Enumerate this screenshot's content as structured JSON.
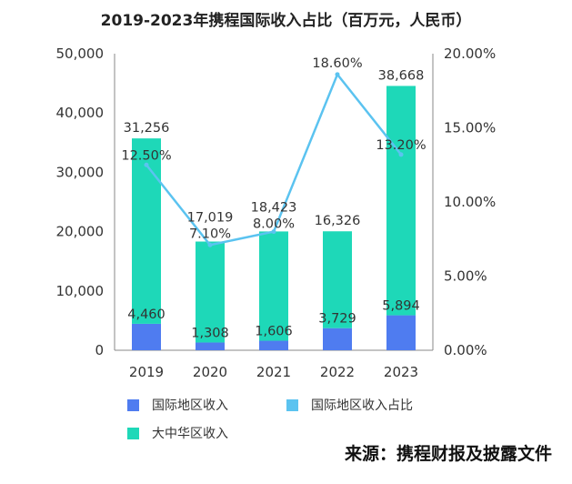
{
  "chart_data": {
    "type": "bar",
    "title": "2019-2023年携程国际收入占比（百万元，人民币）",
    "categories": [
      "2019",
      "2020",
      "2021",
      "2022",
      "2023"
    ],
    "series": [
      {
        "name": "国际地区收入",
        "type": "bar",
        "values": [
          4460,
          1308,
          1606,
          3729,
          5894
        ],
        "color": "#4f7cf0"
      },
      {
        "name": "大中华区收入",
        "type": "bar",
        "values": [
          31256,
          17019,
          18423,
          16326,
          38668
        ],
        "color": "#1ed8b8"
      },
      {
        "name": "国际地区收入占比",
        "type": "line",
        "axis": "right",
        "values": [
          12.5,
          7.1,
          8.0,
          18.6,
          13.2
        ],
        "color": "#5bc3f0"
      }
    ],
    "bar_labels_bottom": [
      "4,460",
      "1,308",
      "1,606",
      "3,729",
      "5,894"
    ],
    "bar_labels_top": [
      "31,256",
      "17,019",
      "18,423",
      "16,326",
      "38,668"
    ],
    "line_labels": [
      "12.50%",
      "7.10%",
      "8.00%",
      "18.60%",
      "13.20%"
    ],
    "y_left": {
      "min": 0,
      "max": 50000,
      "ticks": [
        "0",
        "10,000",
        "20,000",
        "30,000",
        "40,000",
        "50,000"
      ]
    },
    "y_right": {
      "min": 0,
      "max": 20,
      "ticks": [
        "0.00%",
        "5.00%",
        "10.00%",
        "15.00%",
        "20.00%"
      ]
    },
    "grid": false,
    "legend": "bottom",
    "stacked": true
  },
  "source": "来源：携程财报及披露文件"
}
